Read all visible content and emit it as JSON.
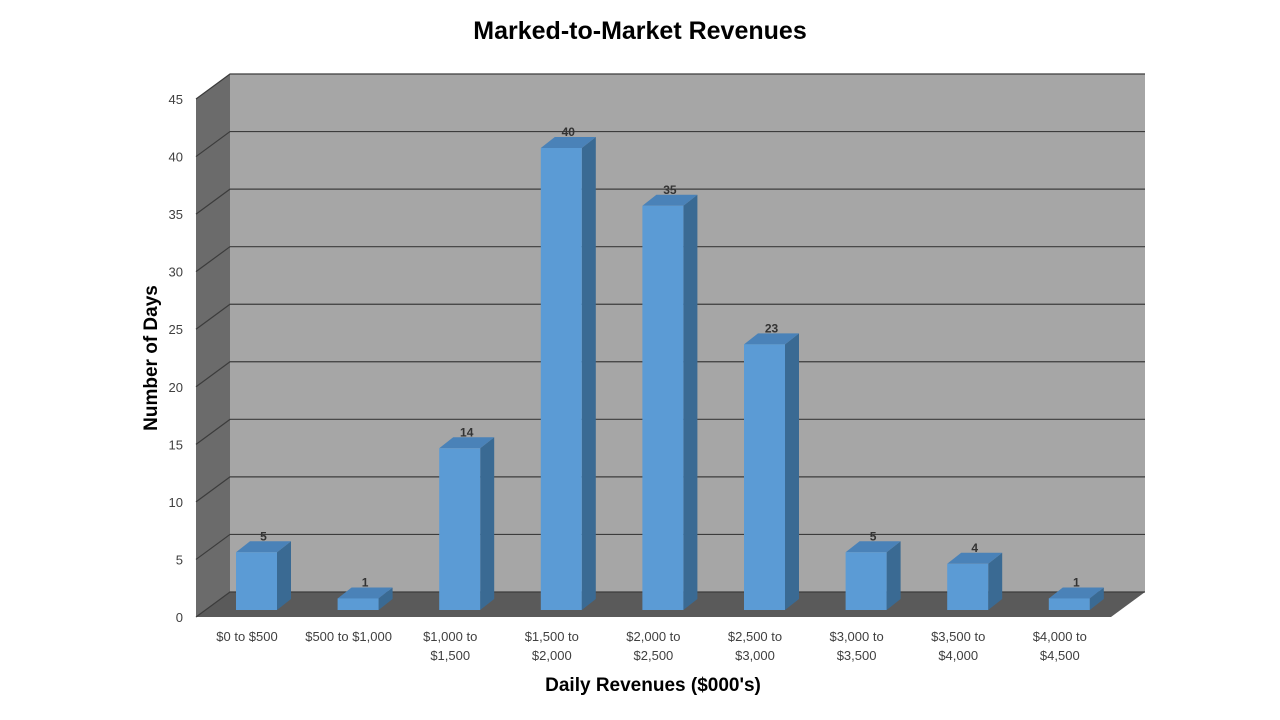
{
  "chart_data": {
    "type": "bar",
    "title": "Marked-to-Market Revenues",
    "xlabel": "Daily Revenues ($000's)",
    "ylabel": "Number of Days",
    "categories": [
      [
        "$0 to $500"
      ],
      [
        "$500 to $1,000"
      ],
      [
        "$1,000 to",
        "$1,500"
      ],
      [
        "$1,500 to",
        "$2,000"
      ],
      [
        "$2,000 to",
        "$2,500"
      ],
      [
        "$2,500 to",
        "$3,000"
      ],
      [
        "$3,000 to",
        "$3,500"
      ],
      [
        "$3,500 to",
        "$4,000"
      ],
      [
        "$4,000 to",
        "$4,500"
      ]
    ],
    "values": [
      5,
      1,
      14,
      40,
      35,
      23,
      5,
      4,
      1
    ],
    "ylim": [
      0,
      45
    ],
    "yticks": [
      0,
      5,
      10,
      15,
      20,
      25,
      30,
      35,
      40,
      45
    ],
    "grid": true,
    "legend": "none",
    "style": "3d-column",
    "colors": {
      "bar_front": "#5b9bd5",
      "bar_side": "#3a6a93",
      "bar_top": "#4a82b8",
      "back_wall": "#a6a6a6",
      "side_wall": "#6b6b6b",
      "floor": "#5a5a5a",
      "gridline": "#3c3c3c"
    }
  }
}
